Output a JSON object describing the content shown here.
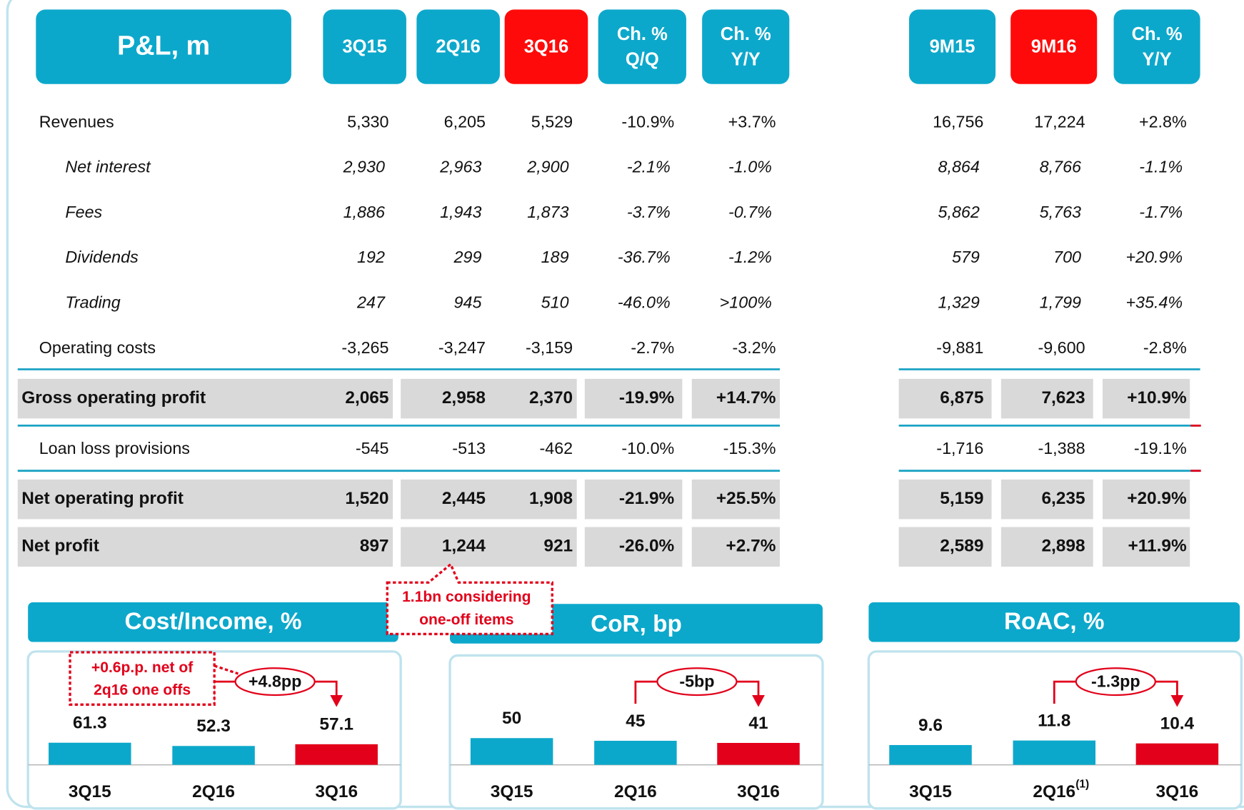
{
  "table": {
    "title": "P&L, m",
    "columns": [
      "3Q15",
      "2Q16",
      "3Q16",
      [
        "Ch. %",
        "Q/Q"
      ],
      [
        "Ch. %",
        "Y/Y"
      ],
      "9M15",
      "9M16",
      [
        "Ch. %",
        "Y/Y"
      ]
    ],
    "highlight": [
      false,
      false,
      true,
      false,
      false,
      false,
      true,
      false
    ],
    "header_colors": {
      "normal": "#0ca8cb",
      "highlight": "#ff0a0a"
    },
    "rows": [
      {
        "label": "Revenues",
        "style": "normal",
        "values": [
          "5,330",
          "6,205",
          "5,529",
          "-10.9%",
          "+3.7%",
          "16,756",
          "17,224",
          "+2.8%"
        ]
      },
      {
        "label": "Net interest",
        "style": "italic",
        "values": [
          "2,930",
          "2,963",
          "2,900",
          "-2.1%",
          "-1.0%",
          "8,864",
          "8,766",
          "-1.1%"
        ]
      },
      {
        "label": "Fees",
        "style": "italic",
        "values": [
          "1,886",
          "1,943",
          "1,873",
          "-3.7%",
          "-0.7%",
          "5,862",
          "5,763",
          "-1.7%"
        ]
      },
      {
        "label": "Dividends",
        "style": "italic",
        "values": [
          "192",
          "299",
          "189",
          "-36.7%",
          "-1.2%",
          "579",
          "700",
          "+20.9%"
        ]
      },
      {
        "label": "Trading",
        "style": "italic",
        "values": [
          "247",
          "945",
          "510",
          "-46.0%",
          ">100%",
          "1,329",
          "1,799",
          "+35.4%"
        ]
      },
      {
        "label": "Operating costs",
        "style": "normal",
        "values": [
          "-3,265",
          "-3,247",
          "-3,159",
          "-2.7%",
          "-3.2%",
          "-9,881",
          "-9,600",
          "-2.8%"
        ]
      },
      {
        "label": "Gross operating profit",
        "style": "bold",
        "values": [
          "2,065",
          "2,958",
          "2,370",
          "-19.9%",
          "+14.7%",
          "6,875",
          "7,623",
          "+10.9%"
        ]
      },
      {
        "label": "Loan loss provisions",
        "style": "normal",
        "values": [
          "-545",
          "-513",
          "-462",
          "-10.0%",
          "-15.3%",
          "-1,716",
          "-1,388",
          "-19.1%"
        ]
      },
      {
        "label": "Net operating profit",
        "style": "bold",
        "values": [
          "1,520",
          "2,445",
          "1,908",
          "-21.9%",
          "+25.5%",
          "5,159",
          "6,235",
          "+20.9%"
        ]
      },
      {
        "label": "Net profit",
        "style": "bold",
        "values": [
          "897",
          "1,244",
          "921",
          "-26.0%",
          "+2.7%",
          "2,589",
          "2,898",
          "+11.9%"
        ]
      }
    ]
  },
  "callout": {
    "lines": [
      "1.1bn considering",
      "one-off items"
    ]
  },
  "panels": [
    {
      "type": "bar",
      "title": "Cost/Income, %",
      "categories": [
        "3Q15",
        "2Q16",
        "3Q16"
      ],
      "values": [
        61.3,
        52.3,
        57.1
      ],
      "colors": [
        "#0ca8cb",
        "#0ca8cb",
        "#e2001a"
      ],
      "ylim": [
        0,
        200
      ],
      "change": "+4.8pp",
      "note": {
        "lines": [
          "+0.6p.p. net of",
          "2q16 one offs"
        ]
      }
    },
    {
      "type": "bar",
      "title": "CoR, bp",
      "categories": [
        "3Q15",
        "2Q16",
        "3Q16"
      ],
      "values": [
        50,
        45,
        41
      ],
      "colors": [
        "#0ca8cb",
        "#0ca8cb",
        "#e2001a"
      ],
      "ylim": [
        0,
        135
      ],
      "change": "-5bp"
    },
    {
      "type": "bar",
      "title": "RoAC, %",
      "categories": [
        "3Q15",
        "2Q16",
        "3Q16"
      ],
      "values": [
        9.6,
        11.8,
        10.4
      ],
      "colors": [
        "#0ca8cb",
        "#0ca8cb",
        "#e2001a"
      ],
      "ylim": [
        0,
        35
      ],
      "change": "-1.3pp",
      "category_note": {
        "index": 1,
        "text": "(1)"
      }
    }
  ]
}
